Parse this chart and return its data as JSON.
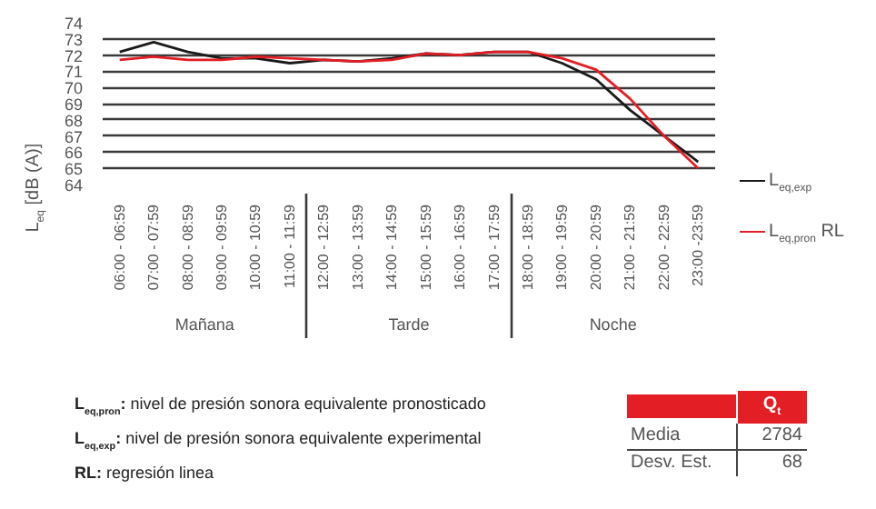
{
  "chart_data": {
    "type": "line",
    "ylabel": "L$_{eq}$ [dB (A)]",
    "categories": [
      "06:00 - 06:59",
      "07:00 - 07:59",
      "08:00 - 08:59",
      "09:00 - 09:59",
      "10:00 - 10:59",
      "11:00 - 11:59",
      "12:00 - 12:59",
      "13:00 - 13:59",
      "14:00 - 14:59",
      "15:00 - 15:59",
      "16:00 - 16:59",
      "17:00 - 17:59",
      "18:00 - 18:59",
      "19:00 - 19:59",
      "20:00 - 20:59",
      "21:00 - 21:59",
      "22:00 - 22:59",
      "23:00 -23:59"
    ],
    "series": [
      {
        "name": "L$_{eq,exp}$",
        "color": "#1a1a1a",
        "values": [
          72.2,
          72.8,
          72.2,
          71.8,
          71.8,
          71.5,
          71.7,
          71.6,
          71.8,
          72.1,
          72.0,
          72.2,
          72.2,
          71.5,
          70.5,
          68.6,
          67.0,
          65.4
        ]
      },
      {
        "name": "L$_{eq,pron}$ RL",
        "color": "#e31e24",
        "values": [
          71.7,
          71.9,
          71.7,
          71.7,
          71.9,
          71.8,
          71.7,
          71.6,
          71.7,
          72.1,
          72.0,
          72.2,
          72.2,
          71.8,
          71.1,
          69.3,
          67.0,
          65.0
        ]
      }
    ],
    "ylim": [
      64,
      74
    ],
    "yticks": [
      64,
      65,
      66,
      67,
      68,
      69,
      70,
      71,
      72,
      73,
      74
    ],
    "grid": "y",
    "legend": "right",
    "marker": "none",
    "line_style": "solid",
    "annotations": [
      "Mañana",
      "Tarde",
      "Noche",
      "L$_{eq,pron}$: nivel de presión sonora equivalente pronosticado",
      "L$_{eq,exp}$: nivel de presión sonora equivalente experimental",
      "RL: regresión linea",
      "Q$_{t}$",
      "Media",
      "2784",
      "Desv. Est.",
      "68"
    ]
  }
}
